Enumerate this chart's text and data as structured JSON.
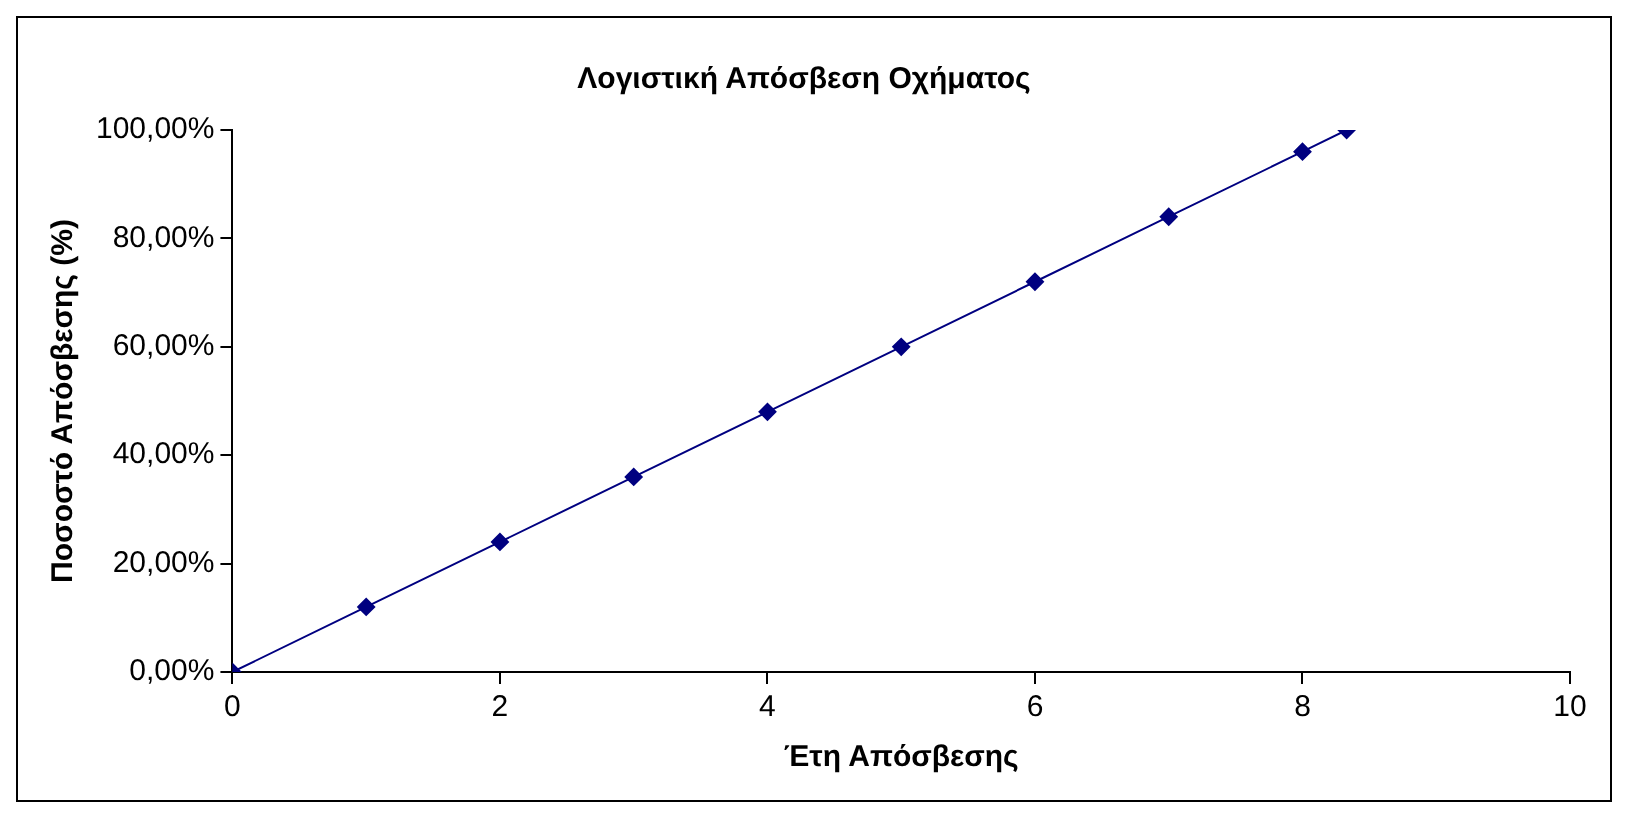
{
  "chart_data": {
    "type": "line",
    "title": "Λογιστική Απόσβεση Οχήματος",
    "xlabel": "Έτη Απόσβεσης",
    "ylabel": "Ποσοστό Απόσβεσης (%)",
    "x": [
      0,
      1,
      2,
      3,
      4,
      5,
      6,
      7,
      8,
      8.33
    ],
    "series": [
      {
        "color": "#000080",
        "values": [
          0,
          12,
          24,
          36,
          48,
          60,
          72,
          84,
          96,
          100
        ]
      }
    ],
    "xlim": [
      0,
      10
    ],
    "xticks": [
      0,
      2,
      4,
      6,
      8,
      10
    ],
    "ylim": [
      0,
      100
    ],
    "yticks": [
      {
        "value": 0,
        "label": "0,00%"
      },
      {
        "value": 20,
        "label": "20,00%"
      },
      {
        "value": 40,
        "label": "40,00%"
      },
      {
        "value": 60,
        "label": "60,00%"
      },
      {
        "value": 80,
        "label": "80,00%"
      },
      {
        "value": 100,
        "label": "100,00%"
      }
    ],
    "grid": false,
    "legend": false,
    "marker": "diamond",
    "line_style": "solid"
  }
}
